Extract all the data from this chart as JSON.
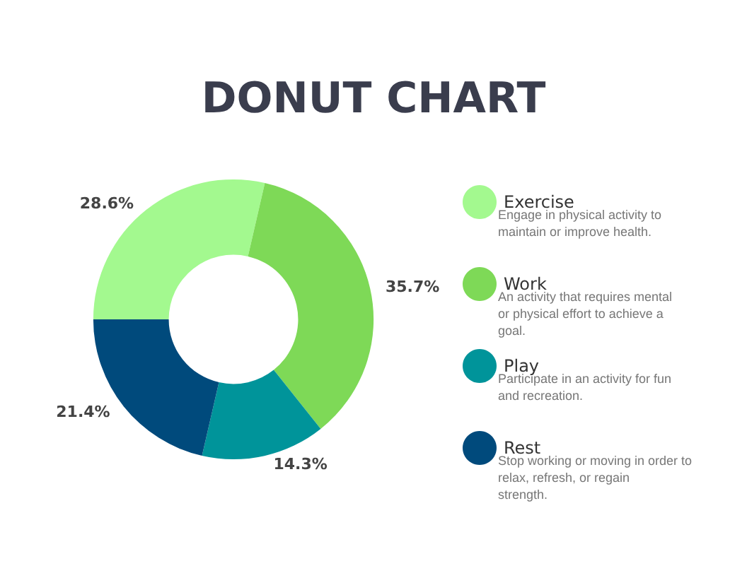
{
  "chart_data": {
    "type": "donut",
    "title": "DONUT CHART",
    "categories": [
      "Exercise",
      "Work",
      "Play",
      "Rest"
    ],
    "values": [
      28.6,
      35.7,
      14.3,
      21.4
    ],
    "colors": [
      "#a3f98f",
      "#7ed957",
      "#00949a",
      "#004a7c"
    ],
    "annotations": [
      "Engage in physical activity to maintain or improve health.",
      "An activity that requires mental or physical effort to achieve a goal.",
      "Participate in an activity for fun and recreation.",
      "Stop working or moving in order to relax, refresh, or regain strength."
    ],
    "value_labels": [
      "28.6%",
      "35.7%",
      "14.3%",
      "21.4%"
    ],
    "legend": "right"
  }
}
